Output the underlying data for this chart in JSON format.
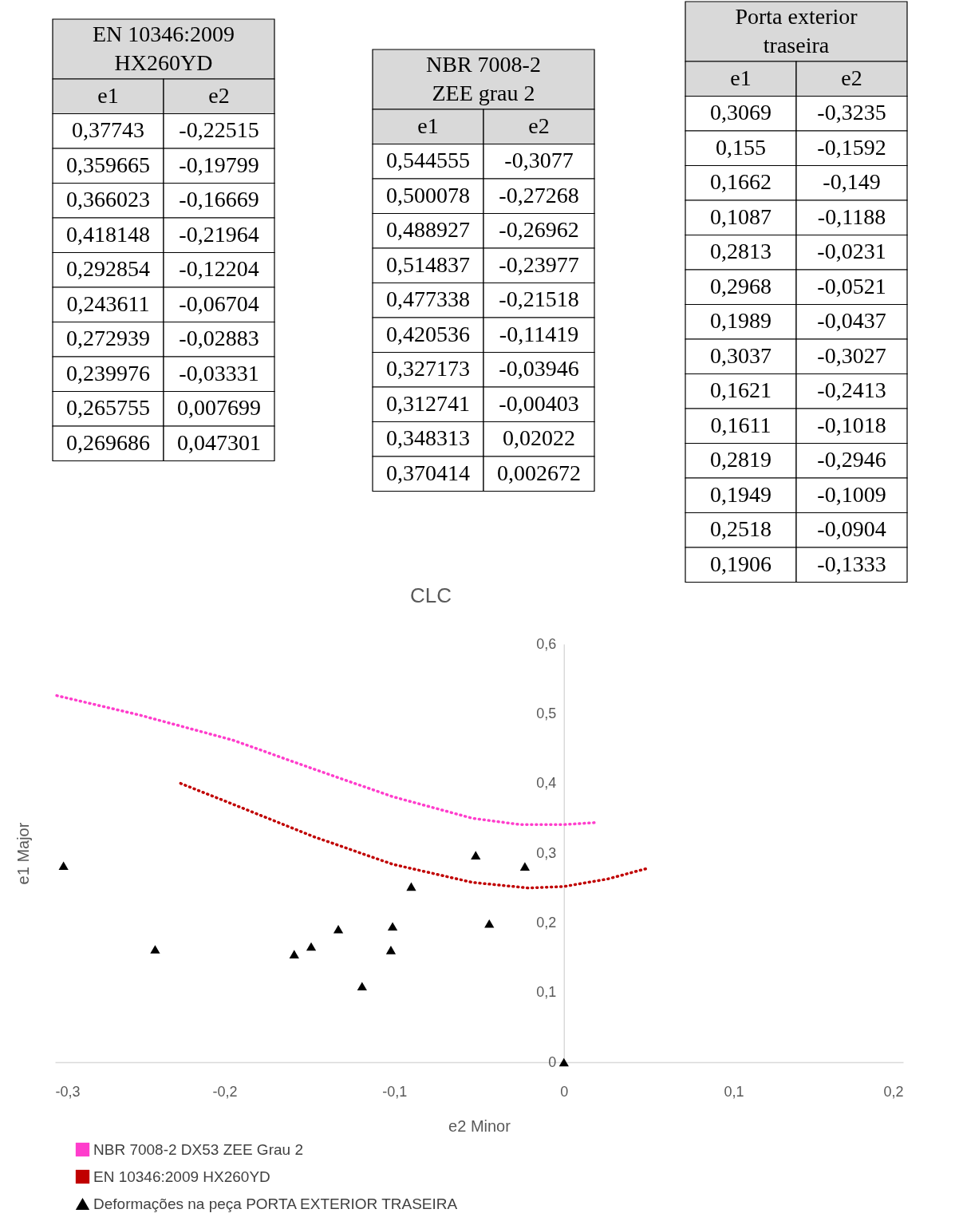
{
  "chart_data": [
    {
      "type": "other",
      "title": "EN 10346:2009\nHX260YD",
      "categories": [
        "e1",
        "e2"
      ],
      "annotations": [
        "0,37743",
        "-0,22515",
        "0,359665",
        "-0,19799",
        "0,366023",
        "-0,16669",
        "0,418148",
        "-0,21964",
        "0,292854",
        "-0,12204",
        "0,243611",
        "-0,06704",
        "0,272939",
        "-0,02883",
        "0,239976",
        "-0,03331",
        "0,265755",
        "0,007699",
        "0,269686",
        "0,047301"
      ]
    },
    {
      "type": "other",
      "title": "NBR 7008-2\nZEE grau 2",
      "categories": [
        "e1",
        "e2"
      ],
      "annotations": [
        "0,544555",
        "-0,3077",
        "0,500078",
        "-0,27268",
        "0,488927",
        "-0,26962",
        "0,514837",
        "-0,23977",
        "0,477338",
        "-0,21518",
        "0,420536",
        "-0,11419",
        "0,327173",
        "-0,03946",
        "0,312741",
        "-0,00403",
        "0,348313",
        "0,02022",
        "0,370414",
        "0,002672"
      ]
    },
    {
      "type": "other",
      "title": "Porta exterior\ntraseira",
      "categories": [
        "e1",
        "e2"
      ],
      "annotations": [
        "0,3069",
        "-0,3235",
        "0,155",
        "-0,1592",
        "0,1662",
        "-0,149",
        "0,1087",
        "-0,1188",
        "0,2813",
        "-0,0231",
        "0,2968",
        "-0,0521",
        "0,1989",
        "-0,0437",
        "0,3037",
        "-0,3027",
        "0,1621",
        "-0,2413",
        "0,1611",
        "-0,1018",
        "0,2819",
        "-0,2946",
        "0,1949",
        "-0,1009",
        "0,2518",
        "-0,0904",
        "0,1906",
        "-0,1333"
      ]
    },
    {
      "type": "scatter",
      "title": "CLC",
      "xlabel": "e2 Minor",
      "ylabel": "e1 Major",
      "legend": "bottom",
      "grid": false,
      "xlim": [
        -0.3,
        0.2
      ],
      "xticks": [
        {
          "value": -0.3,
          "label": "-0,3"
        },
        {
          "value": -0.2,
          "label": "-0,2"
        },
        {
          "value": -0.1,
          "label": "-0,1"
        },
        0,
        {
          "value": 0.1,
          "label": "0,1"
        },
        {
          "value": 0.2,
          "label": "0,2"
        }
      ],
      "ylim": [
        0,
        0.6
      ],
      "yticks": [
        0,
        {
          "value": 0.1,
          "label": "0,1"
        },
        {
          "value": 0.2,
          "label": "0,2"
        },
        {
          "value": 0.3,
          "label": "0,3"
        },
        {
          "value": 0.4,
          "label": "0,4"
        },
        {
          "value": 0.5,
          "label": "0,5"
        },
        {
          "value": 0.6,
          "label": "0,6"
        }
      ],
      "series": [
        {
          "name": "NBR 7008-2 DX53 ZEE Grau 2",
          "type": "line",
          "color": "#ff3dcc",
          "marker": "none",
          "line_style": "dotted",
          "x": [
            -0.299,
            -0.25,
            -0.195,
            -0.148,
            -0.101,
            -0.054,
            -0.026,
            0,
            0.02
          ],
          "values": [
            0.526,
            0.498,
            0.462,
            0.421,
            0.381,
            0.35,
            0.341,
            0.341,
            0.344
          ]
        },
        {
          "name": "EN 10346:2009 HX260YD",
          "type": "line",
          "color": "#c00000",
          "marker": "none",
          "line_style": "dotted",
          "x": [
            -0.226,
            -0.195,
            -0.148,
            -0.101,
            -0.054,
            -0.021,
            0,
            0.026,
            0.049
          ],
          "values": [
            0.4,
            0.37,
            0.324,
            0.284,
            0.258,
            0.25,
            0.252,
            0.263,
            0.278
          ]
        },
        {
          "name": "Deformações na peça PORTA EXTERIOR TRASEIRA",
          "type": "scatter",
          "color": "#000000",
          "marker": "triangle",
          "x": [
            -0.295,
            -0.241,
            -0.159,
            -0.149,
            -0.133,
            -0.119,
            -0.102,
            -0.101,
            -0.09,
            -0.052,
            -0.044,
            -0.023,
            0
          ],
          "values": [
            0.282,
            0.162,
            0.155,
            0.166,
            0.191,
            0.109,
            0.161,
            0.195,
            0.252,
            0.297,
            0.199,
            0.281,
            0
          ]
        }
      ]
    }
  ]
}
